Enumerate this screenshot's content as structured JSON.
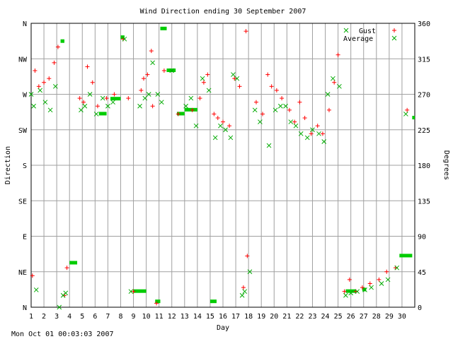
{
  "chart_data": {
    "type": "scatter",
    "title": "Wind Direction ending 30 September 2007",
    "xlabel": "Day",
    "ylabel_left": "Direction",
    "ylabel_right": "Degrees",
    "xlim": [
      1,
      31
    ],
    "ylim": [
      0,
      360
    ],
    "x_ticks": [
      "1",
      "2",
      "3",
      "4",
      "5",
      "6",
      "7",
      "8",
      "9",
      "10",
      "11",
      "12",
      "13",
      "14",
      "15",
      "16",
      "17",
      "18",
      "19",
      "20",
      "21",
      "22",
      "23",
      "24",
      "25",
      "26",
      "27",
      "28",
      "29",
      "30"
    ],
    "left_ticks": [
      {
        "v": 0,
        "label": "N"
      },
      {
        "v": 45,
        "label": "NE"
      },
      {
        "v": 90,
        "label": "E"
      },
      {
        "v": 135,
        "label": "SE"
      },
      {
        "v": 180,
        "label": "S"
      },
      {
        "v": 225,
        "label": "SW"
      },
      {
        "v": 270,
        "label": "W"
      },
      {
        "v": 315,
        "label": "NW"
      },
      {
        "v": 360,
        "label": "N"
      }
    ],
    "right_ticks": [
      0,
      45,
      90,
      135,
      180,
      225,
      270,
      315,
      360
    ],
    "grid": true,
    "legend_position": "top-right",
    "series": [
      {
        "name": "Gust",
        "marker": "plus",
        "color": "#ff0000",
        "points": [
          [
            1.1,
            40
          ],
          [
            1.3,
            300
          ],
          [
            1.6,
            280
          ],
          [
            2.0,
            285
          ],
          [
            2.4,
            290
          ],
          [
            2.8,
            310
          ],
          [
            3.1,
            330
          ],
          [
            3.6,
            15
          ],
          [
            3.8,
            50
          ],
          [
            4.8,
            265
          ],
          [
            5.1,
            260
          ],
          [
            5.4,
            305
          ],
          [
            5.8,
            285
          ],
          [
            6.2,
            255
          ],
          [
            6.9,
            265
          ],
          [
            7.5,
            270
          ],
          [
            8.2,
            340
          ],
          [
            8.6,
            265
          ],
          [
            9.0,
            20
          ],
          [
            9.6,
            275
          ],
          [
            9.8,
            290
          ],
          [
            10.1,
            295
          ],
          [
            10.4,
            325
          ],
          [
            10.5,
            255
          ],
          [
            10.8,
            5
          ],
          [
            11.4,
            300
          ],
          [
            12.5,
            245
          ],
          [
            13.6,
            250
          ],
          [
            14.2,
            265
          ],
          [
            14.5,
            285
          ],
          [
            14.8,
            295
          ],
          [
            15.3,
            245
          ],
          [
            15.6,
            240
          ],
          [
            16.0,
            235
          ],
          [
            16.5,
            230
          ],
          [
            16.9,
            290
          ],
          [
            17.3,
            280
          ],
          [
            17.6,
            25
          ],
          [
            17.8,
            350
          ],
          [
            17.9,
            65
          ],
          [
            18.6,
            260
          ],
          [
            19.1,
            245
          ],
          [
            19.5,
            295
          ],
          [
            19.8,
            280
          ],
          [
            20.2,
            275
          ],
          [
            20.6,
            265
          ],
          [
            21.2,
            250
          ],
          [
            21.6,
            235
          ],
          [
            22.0,
            260
          ],
          [
            22.4,
            240
          ],
          [
            22.9,
            220
          ],
          [
            23.4,
            230
          ],
          [
            23.8,
            220
          ],
          [
            24.3,
            250
          ],
          [
            24.7,
            285
          ],
          [
            25.0,
            320
          ],
          [
            25.5,
            20
          ],
          [
            25.9,
            35
          ],
          [
            26.4,
            20
          ],
          [
            26.9,
            25
          ],
          [
            27.5,
            30
          ],
          [
            28.2,
            35
          ],
          [
            28.8,
            45
          ],
          [
            29.5,
            50
          ],
          [
            30.4,
            250
          ]
        ]
      },
      {
        "name": "Average",
        "marker": "cross",
        "color": "#00aa00",
        "points": [
          [
            1.0,
            270
          ],
          [
            1.2,
            255
          ],
          [
            1.4,
            22
          ],
          [
            1.7,
            275
          ],
          [
            2.1,
            260
          ],
          [
            2.5,
            250
          ],
          [
            2.9,
            280
          ],
          [
            3.2,
            0
          ],
          [
            3.5,
            15
          ],
          [
            3.7,
            18
          ],
          [
            4.9,
            250
          ],
          [
            5.2,
            255
          ],
          [
            5.6,
            270
          ],
          [
            6.1,
            245
          ],
          [
            6.6,
            265
          ],
          [
            7.0,
            255
          ],
          [
            7.4,
            260
          ],
          [
            8.3,
            340
          ],
          [
            8.8,
            20
          ],
          [
            9.5,
            255
          ],
          [
            9.9,
            265
          ],
          [
            10.2,
            270
          ],
          [
            10.5,
            310
          ],
          [
            10.9,
            270
          ],
          [
            11.2,
            260
          ],
          [
            12.0,
            300
          ],
          [
            13.1,
            255
          ],
          [
            13.5,
            265
          ],
          [
            13.9,
            230
          ],
          [
            14.4,
            290
          ],
          [
            14.9,
            275
          ],
          [
            15.4,
            215
          ],
          [
            15.8,
            230
          ],
          [
            16.2,
            225
          ],
          [
            16.6,
            215
          ],
          [
            16.8,
            295
          ],
          [
            17.1,
            290
          ],
          [
            17.5,
            15
          ],
          [
            17.7,
            20
          ],
          [
            18.1,
            45
          ],
          [
            18.5,
            250
          ],
          [
            18.9,
            235
          ],
          [
            19.6,
            205
          ],
          [
            20.1,
            250
          ],
          [
            20.5,
            255
          ],
          [
            20.9,
            255
          ],
          [
            21.3,
            235
          ],
          [
            21.7,
            230
          ],
          [
            22.1,
            220
          ],
          [
            22.6,
            215
          ],
          [
            23.0,
            225
          ],
          [
            23.5,
            220
          ],
          [
            23.9,
            210
          ],
          [
            24.2,
            270
          ],
          [
            24.6,
            290
          ],
          [
            25.1,
            280
          ],
          [
            25.6,
            15
          ],
          [
            26.0,
            18
          ],
          [
            26.5,
            20
          ],
          [
            27.1,
            22
          ],
          [
            27.6,
            25
          ],
          [
            28.4,
            30
          ],
          [
            28.9,
            35
          ],
          [
            29.6,
            50
          ],
          [
            30.3,
            245
          ]
        ]
      }
    ],
    "average_runs": [
      [
        3.3,
        3.6,
        337
      ],
      [
        4.0,
        4.6,
        56
      ],
      [
        6.3,
        6.9,
        245
      ],
      [
        7.2,
        8.0,
        264
      ],
      [
        8.0,
        8.3,
        342
      ],
      [
        9.0,
        10.0,
        20
      ],
      [
        10.7,
        11.1,
        7
      ],
      [
        11.1,
        11.6,
        353
      ],
      [
        11.6,
        12.3,
        300
      ],
      [
        12.4,
        13.0,
        245
      ],
      [
        13.0,
        14.0,
        250
      ],
      [
        15.0,
        15.5,
        7
      ],
      [
        25.6,
        26.4,
        20
      ],
      [
        26.9,
        27.2,
        22
      ],
      [
        29.8,
        30.8,
        65
      ],
      [
        30.8,
        31.0,
        240
      ]
    ],
    "legend": [
      "Gust",
      "Average"
    ],
    "timestamp": "Mon Oct 01 00:03:03 2007"
  }
}
